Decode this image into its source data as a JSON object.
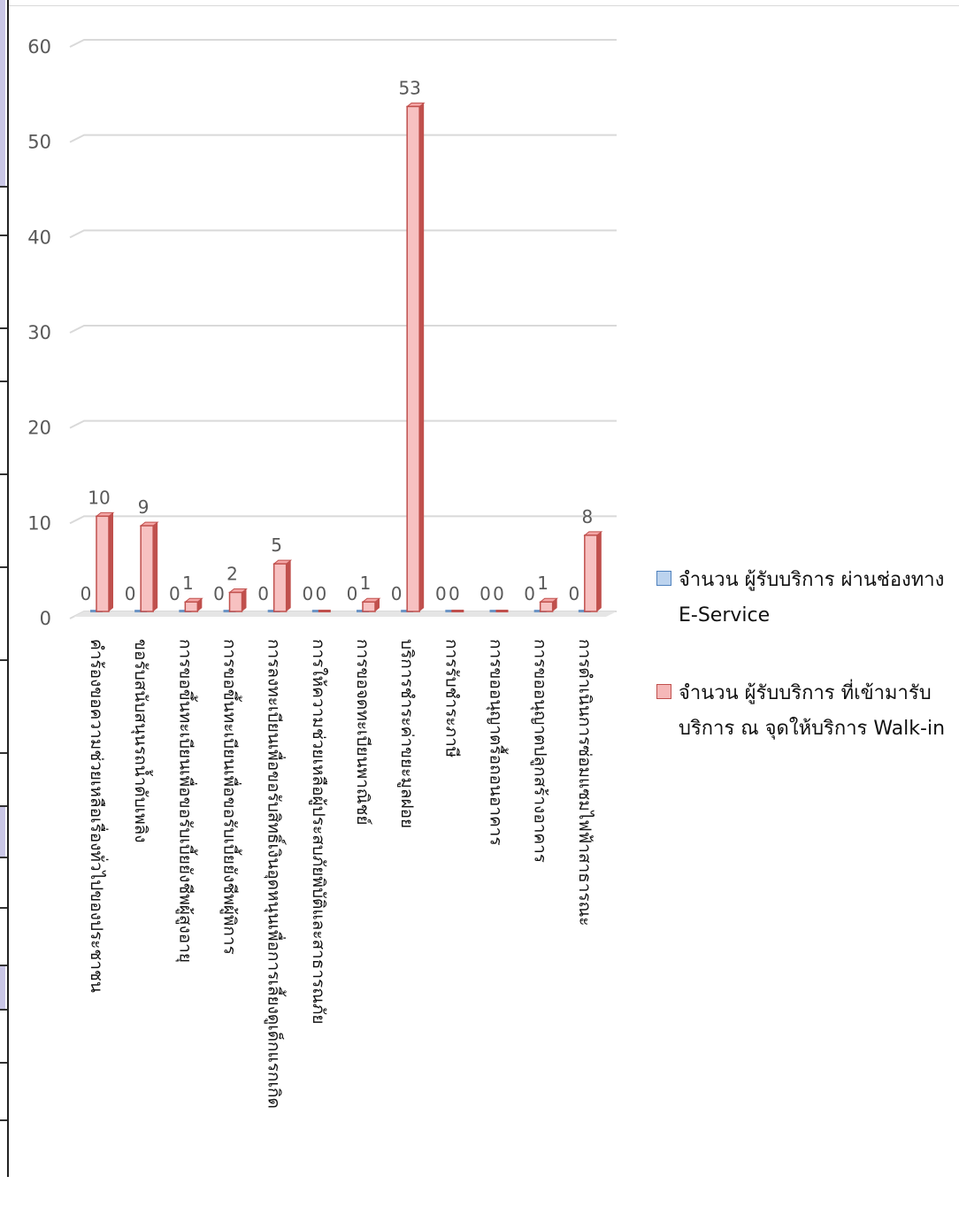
{
  "chart_data": {
    "type": "bar",
    "title": "",
    "xlabel": "",
    "ylabel": "",
    "ylim": [
      0,
      60
    ],
    "yticks": [
      0,
      10,
      20,
      30,
      40,
      50,
      60
    ],
    "grid": true,
    "legend_position": "right",
    "categories": [
      "คำร้องขอความช่วยเหลือเรื่องทั่วไปของประชาชน",
      "ขอรับสนับสนุนรถน้ำดับเพลิง",
      "การขอขึ้นทะเบียนเพื่อขอรับเบี้ยยังชีพผู้สูงอายุ",
      "การขอขึ้นทะเบียนเพื่อขอรับเบี้ยยังชีพผู้พิการ",
      "การลงทะเบียนเพื่อขอรับสิทธิ์เงินอุดหนุนเพื่อการเลี้ยงดูเด็กแรกเกิด",
      "การให้ความช่วยเหลือผู้ประสบภัยพิบัติและสาธารณภัย",
      "การขอจดทะเบียนพาณิชย์",
      "บริการชำระค่าขยะมูลฝอย",
      "การรับชำระภาษี",
      "การขออนุญาตรื้อถอนอาคาร",
      "การขออนุญาตปลูกสร้างอาคาร",
      "การดำเนินการซ่อมแซมไฟฟ้าสาธารณะ"
    ],
    "series": [
      {
        "name": "จำนวน ผู้รับบริการ ผ่านช่องทาง E-Service",
        "color": "#4f81bd",
        "values": [
          0,
          0,
          0,
          0,
          0,
          0,
          0,
          0,
          0,
          0,
          0,
          0
        ]
      },
      {
        "name": "จำนวน ผู้รับบริการ ที่เข้ามารับบริการ ณ จุดให้บริการ Walk-in",
        "color": "#e46c6c",
        "values": [
          10,
          9,
          1,
          2,
          5,
          0,
          1,
          53,
          0,
          0,
          1,
          8
        ]
      }
    ]
  }
}
